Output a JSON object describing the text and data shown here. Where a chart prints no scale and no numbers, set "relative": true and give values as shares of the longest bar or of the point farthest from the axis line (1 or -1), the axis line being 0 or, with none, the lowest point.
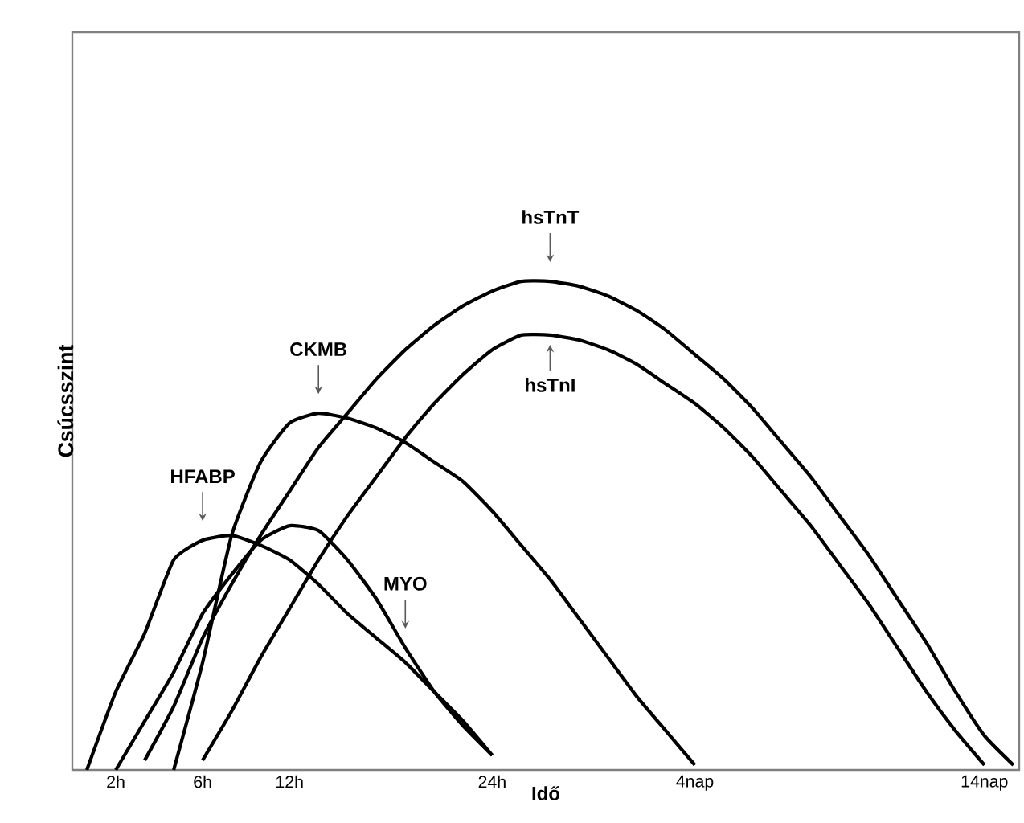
{
  "chart_data": {
    "type": "line",
    "relative": true,
    "xlabel": "Idő",
    "ylabel": "Csúcsszint",
    "categories": [
      null,
      "2h",
      null,
      null,
      "6h",
      null,
      null,
      "12h",
      null,
      null,
      null,
      null,
      null,
      null,
      "24h",
      null,
      null,
      null,
      null,
      null,
      null,
      "4nap",
      null,
      null,
      null,
      null,
      null,
      null,
      null,
      null,
      null,
      "14nap",
      null
    ],
    "tick_labels": "x",
    "legend": false,
    "grid": false,
    "marker": "none",
    "line_style": "solid",
    "series": [
      {
        "color": "#000000",
        "values": [
          0,
          0.16,
          0.28,
          0.43,
          0.47,
          0.48,
          0.46,
          0.43,
          0.38,
          0.32,
          0.27,
          0.22,
          0.16,
          0.1,
          0.03,
          null,
          null,
          null,
          null,
          null,
          null,
          null,
          null,
          null,
          null,
          null,
          null,
          null,
          null,
          null,
          null,
          null,
          null
        ]
      },
      {
        "color": "#000000",
        "values": [
          null,
          0,
          0.1,
          0.2,
          0.32,
          0.4,
          0.47,
          0.5,
          0.49,
          0.43,
          0.35,
          0.25,
          0.16,
          0.09,
          0.03,
          null,
          null,
          null,
          null,
          null,
          null,
          null,
          null,
          null,
          null,
          null,
          null,
          null,
          null,
          null,
          null,
          null,
          null
        ]
      },
      {
        "color": "#000000",
        "values": [
          null,
          null,
          null,
          0,
          0.22,
          0.48,
          0.63,
          0.71,
          0.73,
          0.72,
          0.7,
          0.67,
          0.63,
          0.59,
          0.53,
          0.46,
          0.39,
          0.31,
          0.23,
          0.15,
          0.08,
          0.01,
          null,
          null,
          null,
          null,
          null,
          null,
          null,
          null,
          null,
          null,
          null
        ]
      },
      {
        "color": "#000000",
        "values": [
          null,
          null,
          0.02,
          0.13,
          0.27,
          0.38,
          0.48,
          0.57,
          0.66,
          0.73,
          0.8,
          0.86,
          0.91,
          0.95,
          0.98,
          1,
          1,
          0.99,
          0.97,
          0.94,
          0.9,
          0.85,
          0.8,
          0.74,
          0.67,
          0.6,
          0.52,
          0.44,
          0.35,
          0.26,
          0.16,
          0.07,
          0.01
        ]
      },
      {
        "color": "#000000",
        "values": [
          null,
          null,
          null,
          null,
          0.02,
          0.12,
          0.23,
          0.33,
          0.43,
          0.52,
          0.6,
          0.68,
          0.75,
          0.81,
          0.86,
          0.89,
          0.89,
          0.88,
          0.86,
          0.83,
          0.79,
          0.75,
          0.7,
          0.64,
          0.57,
          0.5,
          0.42,
          0.34,
          0.25,
          0.16,
          0.08,
          0.01,
          null
        ]
      }
    ],
    "annotations": [
      "HFABP",
      "MYO",
      "CKMB",
      "hsTnT",
      "hsTnI"
    ]
  }
}
